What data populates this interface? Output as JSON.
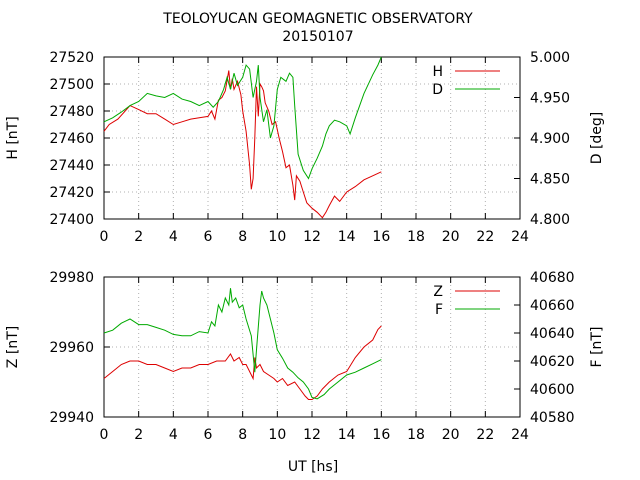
{
  "title": "TEOLOYUCAN GEOMAGNETIC OBSERVATORY",
  "subtitle": "20150107",
  "xlabel": "UT [hs]",
  "chart_data": [
    {
      "type": "line",
      "xlim": [
        0,
        24
      ],
      "xticks": [
        0,
        2,
        4,
        6,
        8,
        10,
        12,
        14,
        16,
        18,
        20,
        22,
        24
      ],
      "ylabel_left": "H [nT]",
      "ylim_left": [
        27400,
        27520
      ],
      "yticks_left": [
        "27400",
        "27420",
        "27440",
        "27460",
        "27480",
        "27500",
        "27520"
      ],
      "ylabel_right": "D [deg]",
      "ylim_right": [
        4.8,
        5.0
      ],
      "yticks_right": [
        "4.800",
        "4.850",
        "4.900",
        "4.950",
        "5.000"
      ],
      "grid": true,
      "legend": "top-right",
      "series": [
        {
          "name": "H",
          "axis": "left",
          "color": "#dd0000",
          "x": [
            0,
            0.3,
            0.8,
            1.5,
            2.0,
            2.5,
            3.0,
            3.5,
            4.0,
            4.5,
            5.0,
            5.5,
            6.0,
            6.2,
            6.4,
            6.6,
            6.8,
            7.0,
            7.2,
            7.3,
            7.4,
            7.5,
            7.7,
            7.9,
            8.0,
            8.2,
            8.4,
            8.5,
            8.6,
            8.7,
            8.8,
            8.9,
            9.0,
            9.1,
            9.2,
            9.3,
            9.5,
            9.7,
            9.9,
            10.1,
            10.3,
            10.5,
            10.7,
            10.9,
            11.0,
            11.1,
            11.3,
            11.5,
            11.7,
            12.0,
            12.3,
            12.6,
            12.8,
            13.0,
            13.3,
            13.6,
            14.0,
            14.5,
            15.0,
            15.5,
            16.0
          ],
          "values": [
            27465,
            27470,
            27474,
            27484,
            27481,
            27478,
            27478,
            27474,
            27470,
            27472,
            27474,
            27475,
            27476,
            27480,
            27474,
            27488,
            27490,
            27495,
            27510,
            27496,
            27504,
            27496,
            27502,
            27492,
            27480,
            27465,
            27440,
            27422,
            27430,
            27460,
            27498,
            27476,
            27500,
            27498,
            27495,
            27486,
            27480,
            27470,
            27472,
            27460,
            27450,
            27438,
            27440,
            27425,
            27414,
            27432,
            27428,
            27420,
            27412,
            27408,
            27405,
            27401,
            27405,
            27410,
            27417,
            27413,
            27420,
            27424,
            27429,
            27432,
            27435
          ]
        },
        {
          "name": "D",
          "axis": "right",
          "color": "#00aa00",
          "x": [
            0,
            0.5,
            1.0,
            1.5,
            2.0,
            2.5,
            3.0,
            3.5,
            4.0,
            4.5,
            5.0,
            5.5,
            6.0,
            6.3,
            6.6,
            6.9,
            7.1,
            7.3,
            7.5,
            7.7,
            8.0,
            8.2,
            8.4,
            8.6,
            8.8,
            8.9,
            9.0,
            9.2,
            9.4,
            9.6,
            9.8,
            10.0,
            10.2,
            10.5,
            10.7,
            10.9,
            11.0,
            11.2,
            11.5,
            11.8,
            12.0,
            12.3,
            12.6,
            12.8,
            13.0,
            13.3,
            13.6,
            14.0,
            14.2,
            14.5,
            15.0,
            15.5,
            15.8,
            16.0
          ],
          "values": [
            4.92,
            4.925,
            4.932,
            4.94,
            4.945,
            4.955,
            4.952,
            4.95,
            4.955,
            4.948,
            4.945,
            4.94,
            4.945,
            4.938,
            4.945,
            4.96,
            4.975,
            4.96,
            4.98,
            4.965,
            4.975,
            4.99,
            4.985,
            4.95,
            4.97,
            4.99,
            4.95,
            4.92,
            4.935,
            4.9,
            4.915,
            4.96,
            4.975,
            4.97,
            4.98,
            4.975,
            4.94,
            4.88,
            4.86,
            4.85,
            4.862,
            4.875,
            4.89,
            4.905,
            4.915,
            4.922,
            4.92,
            4.915,
            4.905,
            4.925,
            4.955,
            4.978,
            4.99,
            5.005
          ]
        }
      ]
    },
    {
      "type": "line",
      "xlim": [
        0,
        24
      ],
      "xticks": [
        0,
        2,
        4,
        6,
        8,
        10,
        12,
        14,
        16,
        18,
        20,
        22,
        24
      ],
      "ylabel_left": "Z [nT]",
      "ylim_left": [
        29940,
        29980
      ],
      "yticks_left": [
        "29940",
        "29960",
        "29980"
      ],
      "ylabel_right": "F [nT]",
      "ylim_right": [
        40580,
        40680
      ],
      "yticks_right": [
        "40580",
        "40600",
        "40620",
        "40640",
        "40660",
        "40680"
      ],
      "grid": true,
      "legend": "top-right",
      "series": [
        {
          "name": "Z",
          "axis": "left",
          "color": "#dd0000",
          "x": [
            0,
            0.5,
            1.0,
            1.5,
            2.0,
            2.5,
            3.0,
            3.5,
            4.0,
            4.5,
            5.0,
            5.5,
            6.0,
            6.5,
            7.0,
            7.3,
            7.5,
            7.8,
            8.0,
            8.2,
            8.4,
            8.6,
            8.7,
            8.8,
            9.0,
            9.2,
            9.5,
            9.8,
            10.0,
            10.3,
            10.6,
            11.0,
            11.3,
            11.6,
            11.8,
            12.0,
            12.3,
            12.6,
            13.0,
            13.5,
            14.0,
            14.5,
            15.0,
            15.5,
            15.8,
            16.0
          ],
          "values": [
            29951,
            29953,
            29955,
            29956,
            29956,
            29955,
            29955,
            29954,
            29953,
            29954,
            29954,
            29955,
            29955,
            29956,
            29956,
            29958,
            29956,
            29957,
            29955,
            29955,
            29953,
            29951,
            29957,
            29954,
            29955,
            29953,
            29952,
            29951,
            29950,
            29951,
            29949,
            29950,
            29948,
            29946,
            29945,
            29945,
            29946,
            29948,
            29950,
            29952,
            29953,
            29957,
            29960,
            29962,
            29965,
            29966
          ]
        },
        {
          "name": "F",
          "axis": "right",
          "color": "#00aa00",
          "x": [
            0,
            0.5,
            1.0,
            1.5,
            2.0,
            2.5,
            3.0,
            3.5,
            4.0,
            4.5,
            5.0,
            5.5,
            6.0,
            6.2,
            6.4,
            6.6,
            6.8,
            7.0,
            7.2,
            7.3,
            7.4,
            7.6,
            7.8,
            8.0,
            8.2,
            8.5,
            8.7,
            8.8,
            9.0,
            9.1,
            9.2,
            9.4,
            9.6,
            9.8,
            10.0,
            10.3,
            10.6,
            10.9,
            11.2,
            11.5,
            11.8,
            12.0,
            12.3,
            12.7,
            13.0,
            13.5,
            14.0,
            14.5,
            15.0,
            15.5,
            16.0
          ],
          "values": [
            40640,
            40642,
            40647,
            40650,
            40646,
            40646,
            40644,
            40642,
            40639,
            40638,
            40638,
            40641,
            40640,
            40648,
            40645,
            40660,
            40655,
            40665,
            40660,
            40672,
            40662,
            40665,
            40658,
            40660,
            40650,
            40638,
            40612,
            40628,
            40660,
            40670,
            40665,
            40660,
            40650,
            40640,
            40628,
            40622,
            40615,
            40612,
            40608,
            40605,
            40600,
            40594,
            40593,
            40596,
            40600,
            40605,
            40610,
            40612,
            40615,
            40618,
            40621
          ]
        }
      ]
    }
  ]
}
